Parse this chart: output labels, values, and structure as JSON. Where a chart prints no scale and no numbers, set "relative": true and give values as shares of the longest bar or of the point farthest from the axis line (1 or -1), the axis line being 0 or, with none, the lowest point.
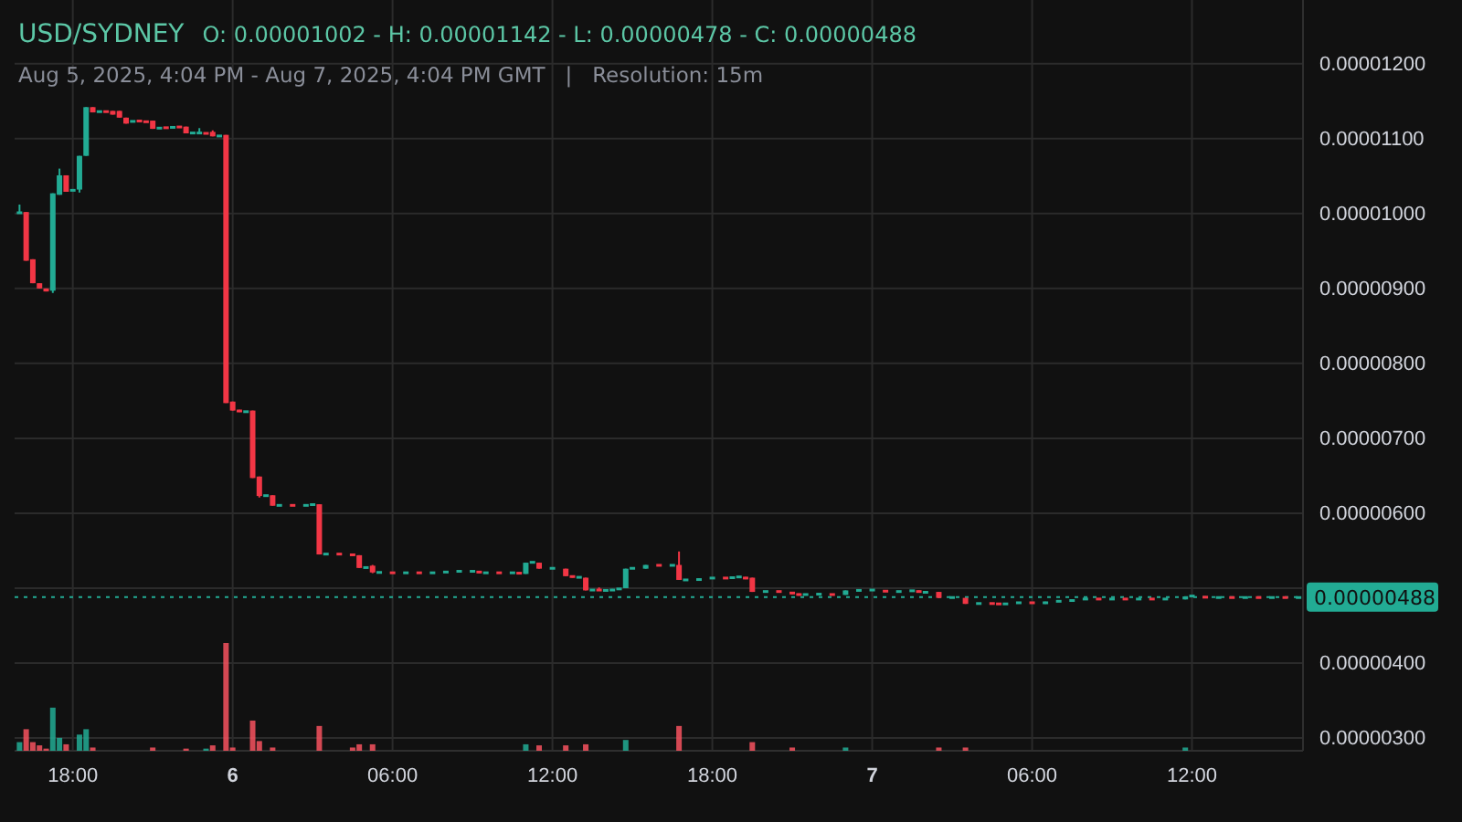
{
  "chart_data": [
    {
      "type": "candlestick",
      "title": "USD/SYDNEY",
      "subtitle": "O: 0.00001002 - H: 0.00001142 - L: 0.00000478 - C: 0.00000488",
      "annotations": [
        "Aug 5, 2025, 4:04 PM - Aug 7, 2025, 4:04 PM GMT   |   Resolution: 15m"
      ],
      "x": [
        "2025-08-05T16:00",
        "2025-08-05T16:15",
        "2025-08-05T16:30",
        "2025-08-05T16:45",
        "2025-08-05T17:00",
        "2025-08-05T17:15",
        "2025-08-05T17:30",
        "2025-08-05T17:45",
        "2025-08-05T18:00",
        "2025-08-05T18:15",
        "2025-08-05T18:30",
        "2025-08-05T18:45",
        "2025-08-05T19:00",
        "2025-08-05T19:15",
        "2025-08-05T19:30",
        "2025-08-05T19:45",
        "2025-08-05T20:00",
        "2025-08-05T20:15",
        "2025-08-05T20:30",
        "2025-08-05T20:45",
        "2025-08-05T21:00",
        "2025-08-05T21:15",
        "2025-08-05T21:30",
        "2025-08-05T21:45",
        "2025-08-05T22:00",
        "2025-08-05T22:15",
        "2025-08-05T22:30",
        "2025-08-05T22:45",
        "2025-08-05T23:00",
        "2025-08-05T23:15",
        "2025-08-05T23:30",
        "2025-08-05T23:45",
        "2025-08-06T00:00",
        "2025-08-06T00:15",
        "2025-08-06T00:30",
        "2025-08-06T00:45",
        "2025-08-06T01:00",
        "2025-08-06T01:15",
        "2025-08-06T01:30",
        "2025-08-06T01:45",
        "2025-08-06T02:15",
        "2025-08-06T02:45",
        "2025-08-06T03:00",
        "2025-08-06T03:15",
        "2025-08-06T03:30",
        "2025-08-06T04:00",
        "2025-08-06T04:30",
        "2025-08-06T04:45",
        "2025-08-06T05:00",
        "2025-08-06T05:15",
        "2025-08-06T05:30",
        "2025-08-06T06:00",
        "2025-08-06T06:30",
        "2025-08-06T07:00",
        "2025-08-06T07:30",
        "2025-08-06T08:00",
        "2025-08-06T08:30",
        "2025-08-06T09:00",
        "2025-08-06T09:15",
        "2025-08-06T09:30",
        "2025-08-06T10:00",
        "2025-08-06T10:30",
        "2025-08-06T10:45",
        "2025-08-06T11:00",
        "2025-08-06T11:15",
        "2025-08-06T11:30",
        "2025-08-06T12:00",
        "2025-08-06T12:30",
        "2025-08-06T12:45",
        "2025-08-06T13:00",
        "2025-08-06T13:15",
        "2025-08-06T13:30",
        "2025-08-06T13:45",
        "2025-08-06T14:00",
        "2025-08-06T14:15",
        "2025-08-06T14:30",
        "2025-08-06T14:45",
        "2025-08-06T15:00",
        "2025-08-06T15:30",
        "2025-08-06T16:00",
        "2025-08-06T16:30",
        "2025-08-06T16:45",
        "2025-08-06T17:00",
        "2025-08-06T17:30",
        "2025-08-06T18:00",
        "2025-08-06T18:30",
        "2025-08-06T18:45",
        "2025-08-06T19:00",
        "2025-08-06T19:15",
        "2025-08-06T19:30",
        "2025-08-06T20:00",
        "2025-08-06T20:30",
        "2025-08-06T21:00",
        "2025-08-06T21:15",
        "2025-08-06T21:30",
        "2025-08-06T22:00",
        "2025-08-06T22:30",
        "2025-08-06T23:00",
        "2025-08-06T23:30",
        "2025-08-07T00:00",
        "2025-08-07T00:30",
        "2025-08-07T01:00",
        "2025-08-07T01:30",
        "2025-08-07T01:45",
        "2025-08-07T02:00",
        "2025-08-07T02:30",
        "2025-08-07T03:00",
        "2025-08-07T03:30",
        "2025-08-07T04:00",
        "2025-08-07T04:30",
        "2025-08-07T04:45",
        "2025-08-07T05:00",
        "2025-08-07T05:30",
        "2025-08-07T06:00",
        "2025-08-07T06:30",
        "2025-08-07T07:00",
        "2025-08-07T07:30",
        "2025-08-07T08:00",
        "2025-08-07T08:30",
        "2025-08-07T09:00",
        "2025-08-07T09:30",
        "2025-08-07T10:00",
        "2025-08-07T10:30",
        "2025-08-07T11:00",
        "2025-08-07T11:45",
        "2025-08-07T12:00",
        "2025-08-07T12:30",
        "2025-08-07T13:00",
        "2025-08-07T13:30",
        "2025-08-07T14:00",
        "2025-08-07T14:30",
        "2025-08-07T15:00",
        "2025-08-07T15:30",
        "2025-08-07T16:00"
      ],
      "ohlc": [
        [
          1e-05,
          1.012e-05,
          1e-05,
          1.002e-05
        ],
        [
          1.002e-05,
          1.002e-05,
          9.37e-06,
          9.37e-06
        ],
        [
          9.39e-06,
          9.39e-06,
          9.07e-06,
          9.07e-06
        ],
        [
          9.07e-06,
          9.07e-06,
          9e-06,
          9e-06
        ],
        [
          9e-06,
          9e-06,
          8.96e-06,
          8.96e-06
        ],
        [
          8.97e-06,
          1.027e-05,
          8.94e-06,
          1.027e-05
        ],
        [
          1.025e-05,
          1.06e-05,
          1.025e-05,
          1.051e-05
        ],
        [
          1.051e-05,
          1.051e-05,
          1.029e-05,
          1.029e-05
        ],
        [
          1.03e-05,
          1.032e-05,
          1.03e-05,
          1.032e-05
        ],
        [
          1.032e-05,
          1.077e-05,
          1.028e-05,
          1.077e-05
        ],
        [
          1.077e-05,
          1.142e-05,
          1.077e-05,
          1.142e-05
        ],
        [
          1.142e-05,
          1.142e-05,
          1.135e-05,
          1.135e-05
        ],
        [
          1.135e-05,
          1.137e-05,
          1.135e-05,
          1.137e-05
        ],
        [
          1.137e-05,
          1.137e-05,
          1.135e-05,
          1.135e-05
        ],
        [
          1.137e-05,
          1.137e-05,
          1.132e-05,
          1.132e-05
        ],
        [
          1.137e-05,
          1.137e-05,
          1.128e-05,
          1.128e-05
        ],
        [
          1.128e-05,
          1.128e-05,
          1.12e-05,
          1.12e-05
        ],
        [
          1.122e-05,
          1.124e-05,
          1.122e-05,
          1.124e-05
        ],
        [
          1.124e-05,
          1.124e-05,
          1.123e-05,
          1.123e-05
        ],
        [
          1.123e-05,
          1.124e-05,
          1.122e-05,
          1.122e-05
        ],
        [
          1.124e-05,
          1.124e-05,
          1.113e-05,
          1.113e-05
        ],
        [
          1.113e-05,
          1.115e-05,
          1.113e-05,
          1.115e-05
        ],
        [
          1.115e-05,
          1.115e-05,
          1.114e-05,
          1.114e-05
        ],
        [
          1.114e-05,
          1.116e-05,
          1.114e-05,
          1.116e-05
        ],
        [
          1.116e-05,
          1.116e-05,
          1.115e-05,
          1.115e-05
        ],
        [
          1.116e-05,
          1.116e-05,
          1.107e-05,
          1.107e-05
        ],
        [
          1.107e-05,
          1.108e-05,
          1.107e-05,
          1.108e-05
        ],
        [
          1.107e-05,
          1.114e-05,
          1.107e-05,
          1.108e-05
        ],
        [
          1.108e-05,
          1.108e-05,
          1.106e-05,
          1.106e-05
        ],
        [
          1.109e-05,
          1.111e-05,
          1.103e-05,
          1.103e-05
        ],
        [
          1.103e-05,
          1.104e-05,
          1.103e-05,
          1.104e-05
        ],
        [
          1.105e-05,
          1.105e-05,
          7.47e-06,
          7.47e-06
        ],
        [
          7.49e-06,
          7.49e-06,
          7.37e-06,
          7.37e-06
        ],
        [
          7.38e-06,
          7.38e-06,
          7.35e-06,
          7.35e-06
        ],
        [
          7.35e-06,
          7.36e-06,
          7.35e-06,
          7.36e-06
        ],
        [
          7.37e-06,
          7.37e-06,
          6.47e-06,
          6.47e-06
        ],
        [
          6.49e-06,
          6.49e-06,
          6.21e-06,
          6.23e-06
        ],
        [
          6.23e-06,
          6.24e-06,
          6.23e-06,
          6.24e-06
        ],
        [
          6.24e-06,
          6.24e-06,
          6.1e-06,
          6.1e-06
        ],
        [
          6.1e-06,
          6.11e-06,
          6.1e-06,
          6.11e-06
        ],
        [
          6.11e-06,
          6.11e-06,
          6.1e-06,
          6.1e-06
        ],
        [
          6.1e-06,
          6.11e-06,
          6.1e-06,
          6.11e-06
        ],
        [
          6.11e-06,
          6.12e-06,
          6.11e-06,
          6.12e-06
        ],
        [
          6.12e-06,
          6.12e-06,
          5.45e-06,
          5.45e-06
        ],
        [
          5.45e-06,
          5.46e-06,
          5.45e-06,
          5.46e-06
        ],
        [
          5.46e-06,
          5.46e-06,
          5.45e-06,
          5.45e-06
        ],
        [
          5.46e-06,
          5.46e-06,
          5.43e-06,
          5.43e-06
        ],
        [
          5.44e-06,
          5.44e-06,
          5.27e-06,
          5.27e-06
        ],
        [
          5.27e-06,
          5.28e-06,
          5.27e-06,
          5.28e-06
        ],
        [
          5.3e-06,
          5.31e-06,
          5.2e-06,
          5.21e-06
        ],
        [
          5.21e-06,
          5.21e-06,
          5.2e-06,
          5.21e-06
        ],
        [
          5.21e-06,
          5.21e-06,
          5.2e-06,
          5.2e-06
        ],
        [
          5.2e-06,
          5.21e-06,
          5.2e-06,
          5.21e-06
        ],
        [
          5.21e-06,
          5.21e-06,
          5.2e-06,
          5.2e-06
        ],
        [
          5.2e-06,
          5.21e-06,
          5.2e-06,
          5.21e-06
        ],
        [
          5.21e-06,
          5.22e-06,
          5.21e-06,
          5.22e-06
        ],
        [
          5.22e-06,
          5.23e-06,
          5.22e-06,
          5.23e-06
        ],
        [
          5.22e-06,
          5.23e-06,
          5.22e-06,
          5.23e-06
        ],
        [
          5.23e-06,
          5.23e-06,
          5.2e-06,
          5.2e-06
        ],
        [
          5.2e-06,
          5.21e-06,
          5.2e-06,
          5.21e-06
        ],
        [
          5.21e-06,
          5.21e-06,
          5.2e-06,
          5.2e-06
        ],
        [
          5.2e-06,
          5.21e-06,
          5.2e-06,
          5.21e-06
        ],
        [
          5.21e-06,
          5.21e-06,
          5.19e-06,
          5.19e-06
        ],
        [
          5.19e-06,
          5.34e-06,
          5.19e-06,
          5.34e-06
        ],
        [
          5.34e-06,
          5.35e-06,
          5.34e-06,
          5.35e-06
        ],
        [
          5.34e-06,
          5.34e-06,
          5.26e-06,
          5.26e-06
        ],
        [
          5.26e-06,
          5.27e-06,
          5.26e-06,
          5.27e-06
        ],
        [
          5.26e-06,
          5.26e-06,
          5.16e-06,
          5.16e-06
        ],
        [
          5.17e-06,
          5.17e-06,
          5.14e-06,
          5.14e-06
        ],
        [
          5.14e-06,
          5.15e-06,
          5.14e-06,
          5.15e-06
        ],
        [
          5.14e-06,
          5.14e-06,
          4.97e-06,
          4.97e-06
        ],
        [
          4.97e-06,
          4.98e-06,
          4.97e-06,
          4.98e-06
        ],
        [
          4.98e-06,
          5.01e-06,
          4.97e-06,
          4.97e-06
        ],
        [
          4.97e-06,
          4.98e-06,
          4.97e-06,
          4.97e-06
        ],
        [
          4.97e-06,
          4.99e-06,
          4.97e-06,
          4.98e-06
        ],
        [
          4.98e-06,
          5e-06,
          4.98e-06,
          5e-06
        ],
        [
          5e-06,
          5.26e-06,
          5e-06,
          5.26e-06
        ],
        [
          5.26e-06,
          5.27e-06,
          5.26e-06,
          5.27e-06
        ],
        [
          5.26e-06,
          5.31e-06,
          5.26e-06,
          5.31e-06
        ],
        [
          5.31e-06,
          5.31e-06,
          5.3e-06,
          5.3e-06
        ],
        [
          5.3e-06,
          5.31e-06,
          5.3e-06,
          5.31e-06
        ],
        [
          5.31e-06,
          5.49e-06,
          5.11e-06,
          5.11e-06
        ],
        [
          5.11e-06,
          5.12e-06,
          5.11e-06,
          5.11e-06
        ],
        [
          5.1e-06,
          5.13e-06,
          5.1e-06,
          5.13e-06
        ],
        [
          5.13e-06,
          5.14e-06,
          5.13e-06,
          5.14e-06
        ],
        [
          5.14e-06,
          5.14e-06,
          5.13e-06,
          5.13e-06
        ],
        [
          5.13e-06,
          5.15e-06,
          5.13e-06,
          5.15e-06
        ],
        [
          5.15e-06,
          5.16e-06,
          5.15e-06,
          5.15e-06
        ],
        [
          5.15e-06,
          5.15e-06,
          5.12e-06,
          5.12e-06
        ],
        [
          5.14e-06,
          5.14e-06,
          4.95e-06,
          4.95e-06
        ],
        [
          4.95e-06,
          4.96e-06,
          4.95e-06,
          4.96e-06
        ],
        [
          4.96e-06,
          4.96e-06,
          4.95e-06,
          4.95e-06
        ],
        [
          4.95e-06,
          4.95e-06,
          4.92e-06,
          4.92e-06
        ],
        [
          4.93e-06,
          4.93e-06,
          4.9e-06,
          4.9e-06
        ],
        [
          4.91e-06,
          4.92e-06,
          4.91e-06,
          4.92e-06
        ],
        [
          4.92e-06,
          4.93e-06,
          4.92e-06,
          4.92e-06
        ],
        [
          4.92e-06,
          4.92e-06,
          4.91e-06,
          4.91e-06
        ],
        [
          4.91e-06,
          4.97e-06,
          4.91e-06,
          4.97e-06
        ],
        [
          4.97e-06,
          4.98e-06,
          4.97e-06,
          4.97e-06
        ],
        [
          4.97e-06,
          4.98e-06,
          4.97e-06,
          4.98e-06
        ],
        [
          4.97e-06,
          4.97e-06,
          4.95e-06,
          4.95e-06
        ],
        [
          4.95e-06,
          4.96e-06,
          4.95e-06,
          4.96e-06
        ],
        [
          4.96e-06,
          4.97e-06,
          4.96e-06,
          4.97e-06
        ],
        [
          4.97e-06,
          4.97e-06,
          4.94e-06,
          4.94e-06
        ],
        [
          4.94e-06,
          4.95e-06,
          4.94e-06,
          4.95e-06
        ],
        [
          4.95e-06,
          4.95e-06,
          4.87e-06,
          4.87e-06
        ],
        [
          4.87e-06,
          4.88e-06,
          4.87e-06,
          4.88e-06
        ],
        [
          4.87e-06,
          4.87e-06,
          4.79e-06,
          4.79e-06
        ],
        [
          4.79e-06,
          4.8e-06,
          4.79e-06,
          4.8e-06
        ],
        [
          4.8e-06,
          4.8e-06,
          4.79e-06,
          4.79e-06
        ],
        [
          4.8e-06,
          4.8e-06,
          4.78e-06,
          4.78e-06
        ],
        [
          4.78e-06,
          4.8e-06,
          4.78e-06,
          4.8e-06
        ],
        [
          4.8e-06,
          4.81e-06,
          4.8e-06,
          4.81e-06
        ],
        [
          4.81e-06,
          4.81e-06,
          4.8e-06,
          4.8e-06
        ],
        [
          4.79e-06,
          4.82e-06,
          4.79e-06,
          4.82e-06
        ],
        [
          4.82e-06,
          4.83e-06,
          4.82e-06,
          4.83e-06
        ],
        [
          4.82e-06,
          4.85e-06,
          4.82e-06,
          4.85e-06
        ],
        [
          4.85e-06,
          4.86e-06,
          4.85e-06,
          4.86e-06
        ],
        [
          4.86e-06,
          4.86e-06,
          4.85e-06,
          4.85e-06
        ],
        [
          4.85e-06,
          4.86e-06,
          4.85e-06,
          4.86e-06
        ],
        [
          4.86e-06,
          4.86e-06,
          4.85e-06,
          4.85e-06
        ],
        [
          4.85e-06,
          4.86e-06,
          4.85e-06,
          4.86e-06
        ],
        [
          4.86e-06,
          4.86e-06,
          4.85e-06,
          4.85e-06
        ],
        [
          4.85e-06,
          4.86e-06,
          4.85e-06,
          4.86e-06
        ],
        [
          4.85e-06,
          4.89e-06,
          4.85e-06,
          4.89e-06
        ],
        [
          4.89e-06,
          4.9e-06,
          4.89e-06,
          4.9e-06
        ],
        [
          4.89e-06,
          4.89e-06,
          4.87e-06,
          4.87e-06
        ],
        [
          4.87e-06,
          4.88e-06,
          4.87e-06,
          4.88e-06
        ],
        [
          4.88e-06,
          4.88e-06,
          4.87e-06,
          4.87e-06
        ],
        [
          4.87e-06,
          4.88e-06,
          4.87e-06,
          4.88e-06
        ],
        [
          4.88e-06,
          4.88e-06,
          4.87e-06,
          4.87e-06
        ],
        [
          4.87e-06,
          4.88e-06,
          4.87e-06,
          4.88e-06
        ],
        [
          4.88e-06,
          4.88e-06,
          4.87e-06,
          4.87e-06
        ],
        [
          4.87e-06,
          4.88e-06,
          4.87e-06,
          4.88e-06
        ]
      ],
      "xlim": [
        "2025-08-05T15:49",
        "2025-08-07T16:10"
      ],
      "xticks": [
        {
          "value": "2025-08-05T18:00",
          "label": "18:00"
        },
        {
          "value": "2025-08-06T00:00",
          "label": "6"
        },
        {
          "value": "2025-08-06T06:00",
          "label": "06:00"
        },
        {
          "value": "2025-08-06T12:00",
          "label": "12:00"
        },
        {
          "value": "2025-08-06T18:00",
          "label": "18:00"
        },
        {
          "value": "2025-08-07T00:00",
          "label": "7"
        },
        {
          "value": "2025-08-07T06:00",
          "label": "06:00"
        },
        {
          "value": "2025-08-07T12:00",
          "label": "12:00"
        }
      ],
      "ylim": [
        2.83e-06,
        1.285e-05
      ],
      "yticks": [
        {
          "value": 3e-06,
          "label": "0.00000300"
        },
        {
          "value": 4e-06,
          "label": "0.00000400"
        },
        {
          "value": 5e-06,
          "label": null
        },
        {
          "value": 6e-06,
          "label": "0.00000600"
        },
        {
          "value": 7e-06,
          "label": "0.00000700"
        },
        {
          "value": 8e-06,
          "label": "0.00000800"
        },
        {
          "value": 9e-06,
          "label": "0.00000900"
        },
        {
          "value": 1e-05,
          "label": "0.00001000"
        },
        {
          "value": 1.1e-05,
          "label": "0.00001100"
        },
        {
          "value": 1.2e-05,
          "label": "0.00001200"
        }
      ],
      "ref_lines": [
        {
          "axis": "y",
          "value": 4.88e-06,
          "label": "0.00000488",
          "color": "#22ab94",
          "line_style": "dotted"
        }
      ],
      "grid": true
    },
    {
      "type": "bar",
      "relative": true,
      "x": [
        "2025-08-05T16:00",
        "2025-08-05T16:15",
        "2025-08-05T16:30",
        "2025-08-05T16:45",
        "2025-08-05T17:00",
        "2025-08-05T17:15",
        "2025-08-05T17:30",
        "2025-08-05T17:45",
        "2025-08-05T18:15",
        "2025-08-05T18:30",
        "2025-08-05T18:45",
        "2025-08-05T21:00",
        "2025-08-05T22:15",
        "2025-08-05T23:00",
        "2025-08-05T23:15",
        "2025-08-05T23:45",
        "2025-08-06T00:00",
        "2025-08-06T00:45",
        "2025-08-06T01:00",
        "2025-08-06T01:30",
        "2025-08-06T03:15",
        "2025-08-06T04:30",
        "2025-08-06T04:45",
        "2025-08-06T05:15",
        "2025-08-06T11:00",
        "2025-08-06T11:30",
        "2025-08-06T12:30",
        "2025-08-06T13:15",
        "2025-08-06T14:45",
        "2025-08-06T16:45",
        "2025-08-06T19:30",
        "2025-08-06T21:00",
        "2025-08-06T23:00",
        "2025-08-07T02:30",
        "2025-08-07T03:30",
        "2025-08-07T11:45"
      ],
      "values": [
        0.08,
        0.2,
        0.08,
        0.05,
        0.02,
        0.4,
        0.12,
        0.06,
        0.15,
        0.2,
        0.03,
        0.03,
        0.02,
        0.02,
        0.05,
        1,
        0.03,
        0.28,
        0.09,
        0.03,
        0.23,
        0.03,
        0.06,
        0.06,
        0.06,
        0.05,
        0.05,
        0.06,
        0.1,
        0.23,
        0.08,
        0.03,
        0.03,
        0.03,
        0.03,
        0.03
      ],
      "colors": [
        "#22ab94",
        "#f7525f",
        "#f7525f",
        "#f7525f",
        "#f7525f",
        "#22ab94",
        "#22ab94",
        "#f7525f",
        "#22ab94",
        "#22ab94",
        "#f7525f",
        "#f7525f",
        "#f7525f",
        "#22ab94",
        "#f7525f",
        "#f7525f",
        "#f7525f",
        "#f7525f",
        "#f7525f",
        "#f7525f",
        "#f7525f",
        "#f7525f",
        "#f7525f",
        "#f7525f",
        "#22ab94",
        "#f7525f",
        "#f7525f",
        "#f7525f",
        "#22ab94",
        "#f7525f",
        "#f7525f",
        "#f7525f",
        "#22ab94",
        "#f7525f",
        "#f7525f",
        "#22ab94"
      ],
      "xlim": [
        "2025-08-05T15:49",
        "2025-08-07T16:10"
      ]
    }
  ]
}
